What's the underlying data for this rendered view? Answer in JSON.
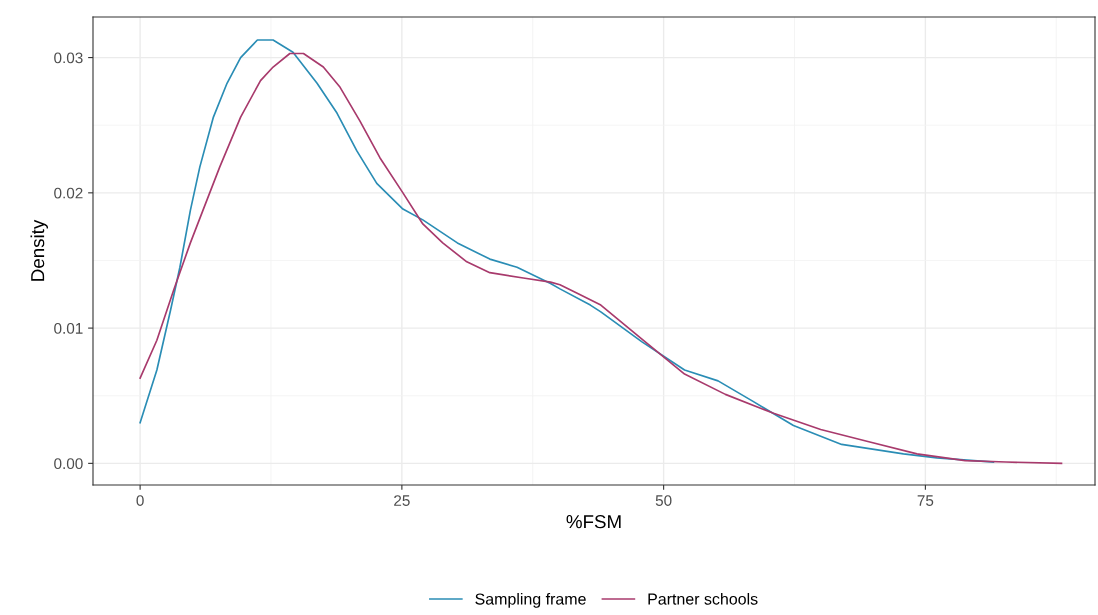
{
  "chart_data": {
    "type": "line",
    "xlabel": "%FSM",
    "ylabel": "Density",
    "xlim": [
      -4.5,
      91.2
    ],
    "ylim": [
      -0.0016,
      0.033
    ],
    "xticks": [
      0,
      25,
      50,
      75
    ],
    "yticks": [
      {
        "value": 0,
        "label": "0.00"
      },
      {
        "value": 0.01,
        "label": "0.01"
      },
      {
        "value": 0.02,
        "label": "0.02"
      },
      {
        "value": 0.03,
        "label": "0.03"
      }
    ],
    "grid": true,
    "legend": "bottom",
    "marker": "none",
    "line_style": "solid",
    "series": [
      {
        "name": "Sampling frame",
        "color": "#2a8db5",
        "x": [
          0,
          1.6,
          2.9,
          3.8,
          4.8,
          5.7,
          7.0,
          8.3,
          9.6,
          11.2,
          12.7,
          14.6,
          16.9,
          18.8,
          20.7,
          22.6,
          25.1,
          27.0,
          30.3,
          33.4,
          36.0,
          39.2,
          40.1,
          43.0,
          44.0,
          47.9,
          52.0,
          55.2,
          58.5,
          62.4,
          67.0,
          72.9,
          76.1,
          81.5
        ],
        "values": [
          0.003,
          0.0069,
          0.0113,
          0.0145,
          0.0187,
          0.0219,
          0.0256,
          0.0281,
          0.03,
          0.0313,
          0.0313,
          0.0304,
          0.0281,
          0.0259,
          0.0231,
          0.0207,
          0.0188,
          0.018,
          0.0163,
          0.0151,
          0.0145,
          0.0133,
          0.0129,
          0.0117,
          0.0112,
          0.009,
          0.0069,
          0.0061,
          0.0046,
          0.0028,
          0.0014,
          0.0007,
          0.0004,
          0.0001
        ]
      },
      {
        "name": "Partner schools",
        "color": "#a83a6c",
        "x": [
          0,
          1.6,
          3.2,
          4.8,
          6.0,
          7.6,
          9.6,
          11.5,
          12.7,
          14.3,
          15.6,
          17.5,
          19.1,
          21.0,
          22.9,
          25.1,
          27.0,
          28.9,
          31.2,
          33.4,
          36.6,
          39.2,
          40.1,
          41.7,
          44.0,
          47.9,
          52.0,
          55.9,
          60.5,
          65.0,
          69.6,
          74.2,
          78.8,
          82.7,
          88.0
        ],
        "values": [
          0.0063,
          0.0091,
          0.0128,
          0.0163,
          0.0187,
          0.0219,
          0.0256,
          0.0283,
          0.0293,
          0.0303,
          0.0303,
          0.0293,
          0.0278,
          0.0253,
          0.0226,
          0.02,
          0.0177,
          0.0163,
          0.0149,
          0.0141,
          0.0137,
          0.0134,
          0.0132,
          0.0126,
          0.0117,
          0.0092,
          0.0066,
          0.0051,
          0.0037,
          0.0025,
          0.0016,
          0.0007,
          0.0002,
          0.0001,
          0.0
        ]
      }
    ]
  }
}
